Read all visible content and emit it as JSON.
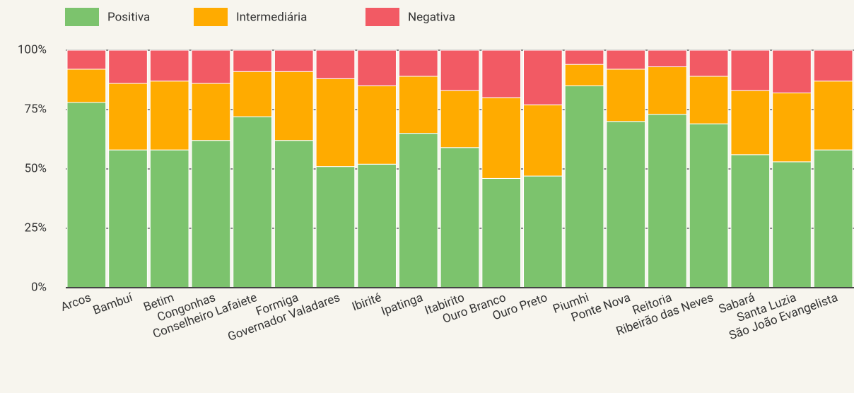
{
  "chart_data": {
    "type": "stacked_bar_100",
    "categories": [
      "Arcos",
      "Bambuí",
      "Betim",
      "Congonhas",
      "Conselheiro Lafaiete",
      "Formiga",
      "Governador Valadares",
      "Ibirité",
      "Ipatinga",
      "Itabirito",
      "Ouro Branco",
      "Ouro Preto",
      "Piumhi",
      "Ponte Nova",
      "Reitoria",
      "Ribeirão das Neves",
      "Sabará",
      "Santa Luzia",
      "São João Evangelista"
    ],
    "series": [
      {
        "name": "Positiva",
        "color": "#7cc36d",
        "values": [
          78,
          58,
          58,
          62,
          72,
          62,
          51,
          52,
          65,
          59,
          46,
          47,
          85,
          70,
          73,
          69,
          56,
          53,
          58
        ]
      },
      {
        "name": "Intermediária",
        "color": "#ffab00",
        "values": [
          14,
          28,
          29,
          24,
          19,
          29,
          37,
          33,
          24,
          24,
          34,
          30,
          9,
          22,
          20,
          20,
          27,
          29,
          29
        ]
      },
      {
        "name": "Negativa",
        "color": "#f25a64",
        "values": [
          8,
          14,
          13,
          14,
          9,
          9,
          12,
          15,
          11,
          17,
          20,
          23,
          6,
          8,
          7,
          11,
          17,
          18,
          13
        ]
      }
    ],
    "ylim": [
      0,
      100
    ],
    "yticks": [
      {
        "value": 0,
        "label": "0%"
      },
      {
        "value": 25,
        "label": "25%"
      },
      {
        "value": 50,
        "label": "50%"
      },
      {
        "value": 75,
        "label": "75%"
      },
      {
        "value": 100,
        "label": "100%"
      }
    ],
    "grid": true,
    "legend": "top"
  }
}
